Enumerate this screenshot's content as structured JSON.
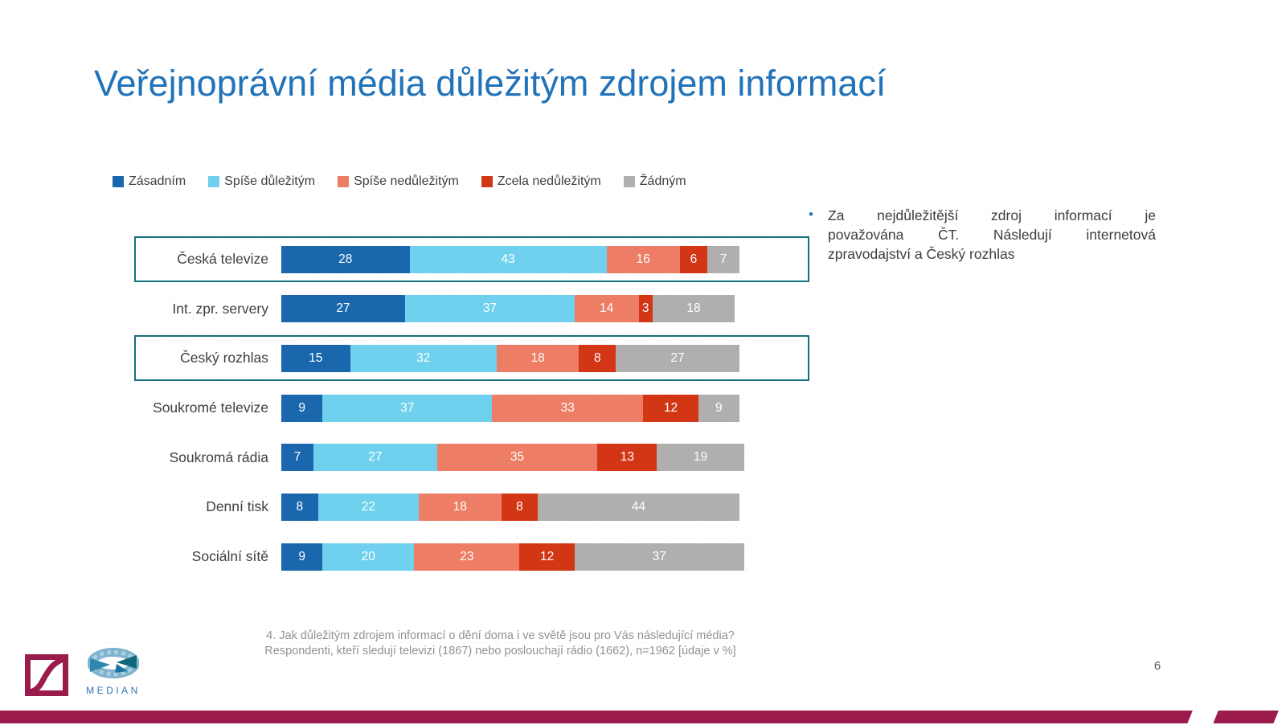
{
  "slide": {
    "title": "Veřejnoprávní média důležitým zdrojem informací",
    "page_number": "6"
  },
  "note": {
    "bullet": "•",
    "lines": [
      "Za nejdůležitější zdroj informací je",
      "považována ČT. Následují internetová",
      "zpravodajství a Český rozhlas"
    ]
  },
  "footer": {
    "line1": "4. Jak důležitým zdrojem informací o dění doma i ve světě jsou pro Vás následující média?",
    "line2": "Respondenti, kteří sledují televizi (1867) nebo poslouchají rádio (1662), n=1962  [údaje v %]"
  },
  "branding": {
    "logo_text": "MEDIAN",
    "accent_color": "#9b1b4d",
    "title_color": "#2173b9"
  },
  "chart_data": {
    "type": "bar",
    "orientation": "horizontal",
    "stacked": true,
    "value_unit": "%",
    "xlim": [
      0,
      100
    ],
    "legend_position": "top",
    "grid": false,
    "categories": [
      "Česká televize",
      "Int. zpr. servery",
      "Český rozhlas",
      "Soukromé televize",
      "Soukromá rádia",
      "Denní tisk",
      "Sociální sítě"
    ],
    "series": [
      {
        "name": "Zásadním",
        "color": "#1b67ae",
        "values": [
          28,
          27,
          15,
          9,
          7,
          8,
          9
        ]
      },
      {
        "name": "Spíše důležitým",
        "color": "#6fd1ed",
        "values": [
          43,
          37,
          32,
          37,
          27,
          22,
          20
        ]
      },
      {
        "name": "Spíše nedůležitým",
        "color": "#ee7d66",
        "values": [
          16,
          14,
          18,
          33,
          35,
          18,
          23
        ]
      },
      {
        "name": "Zcela nedůležitým",
        "color": "#d23615",
        "values": [
          6,
          3,
          8,
          12,
          13,
          8,
          12
        ]
      },
      {
        "name": "Žádným",
        "color": "#b1aeae",
        "values": [
          7,
          18,
          27,
          9,
          19,
          44,
          37
        ]
      }
    ],
    "highlighted_categories": [
      "Česká televize",
      "Český rozhlas"
    ],
    "highlight_box_color": "#16717d"
  }
}
